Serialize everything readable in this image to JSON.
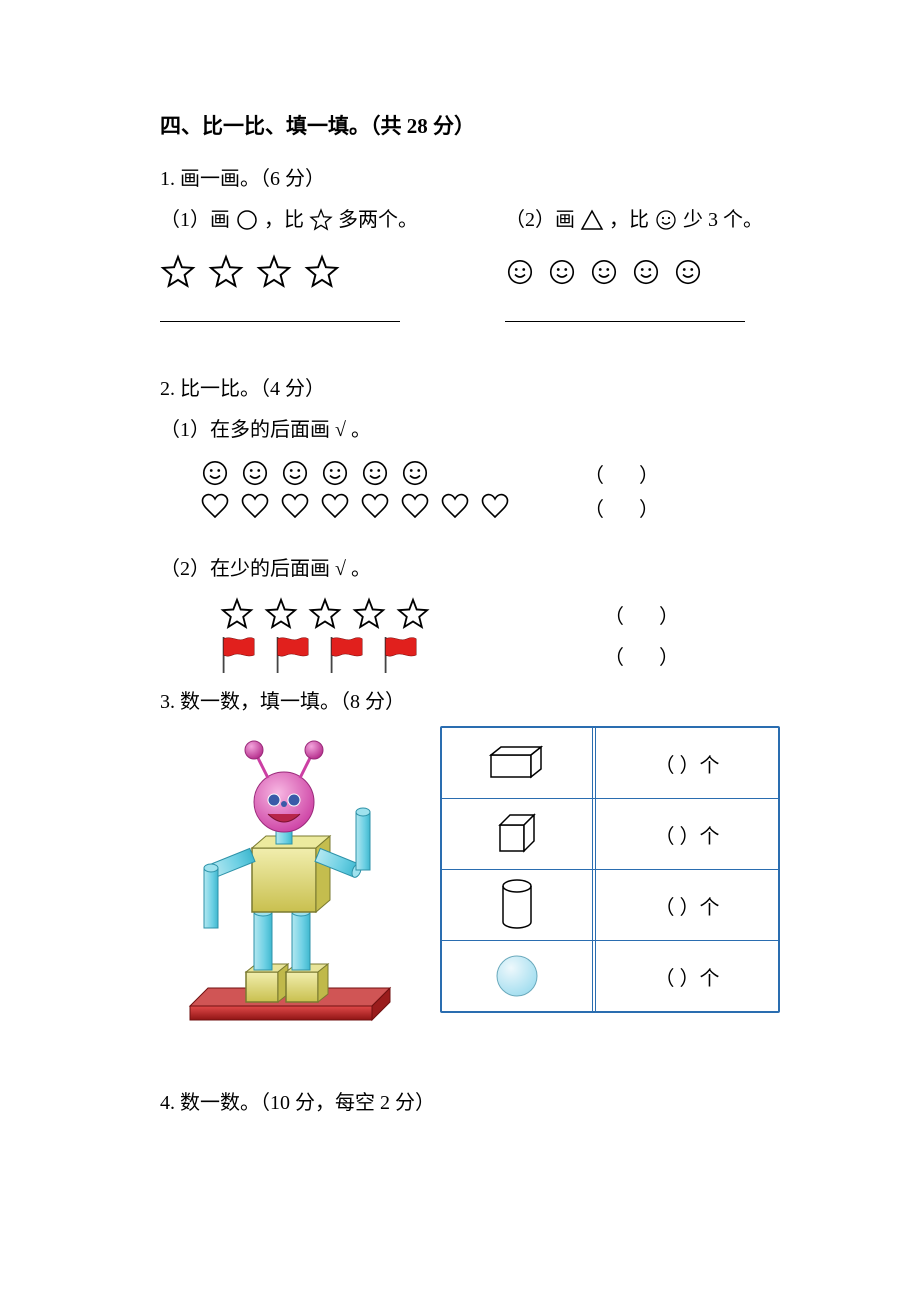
{
  "section": {
    "title": "四、比一比、填一填。（共 28 分）"
  },
  "q1": {
    "heading": "1. 画一画。（6 分）",
    "left_prompt_pre": "（1）画 ",
    "left_prompt_post": "，比 ",
    "left_prompt_tail": "多两个。",
    "right_prompt_pre": "（2）画",
    "right_prompt_post": "，比 ",
    "right_prompt_tail": " 少 3 个。",
    "left_star_count": 4,
    "right_smiley_count": 5,
    "colors": {
      "stroke": "#000000",
      "fill": "none"
    },
    "smiley_stroke": "#000000"
  },
  "q2": {
    "heading": "2. 比一比。（4 分）",
    "sub1_prompt": "（1）在多的后面画 √ 。",
    "sub1_rows": [
      {
        "type": "smiley",
        "count": 6
      },
      {
        "type": "heart",
        "count": 8
      }
    ],
    "sub2_prompt": "（2）在少的后面画 √ 。",
    "sub2_rows": [
      {
        "type": "star",
        "count": 5
      },
      {
        "type": "flag",
        "count": 4
      }
    ],
    "paren_text": "（       ）",
    "flag_color": "#e1201d",
    "flag_pole_color": "#444444",
    "star_stroke": "#000000",
    "heart_stroke": "#000000",
    "smiley_stroke": "#000000"
  },
  "q3": {
    "heading": "3. 数一数，填一填。（8 分）",
    "count_text": "（   ）个",
    "table_rows": [
      "cuboid",
      "cube",
      "cylinder",
      "sphere"
    ],
    "table_border_color": "#2a6db0",
    "robot": {
      "head_fill": [
        "#f49ad6",
        "#cc3fa3"
      ],
      "antenna_fill": "#cc3fa3",
      "eye_fill": "#3a5aa8",
      "mouth_fill": "#b8254a",
      "body_fill": [
        "#f1eeae",
        "#c9c04f"
      ],
      "cylinder_fill": [
        "#b3e7f0",
        "#3fb8cf"
      ],
      "platform_fill": [
        "#cf2a2a",
        "#8f1414"
      ],
      "foot_fill": [
        "#f1eeae",
        "#c9c04f"
      ]
    }
  },
  "q4": {
    "heading": "4. 数一数。（10 分，每空 2 分）"
  }
}
